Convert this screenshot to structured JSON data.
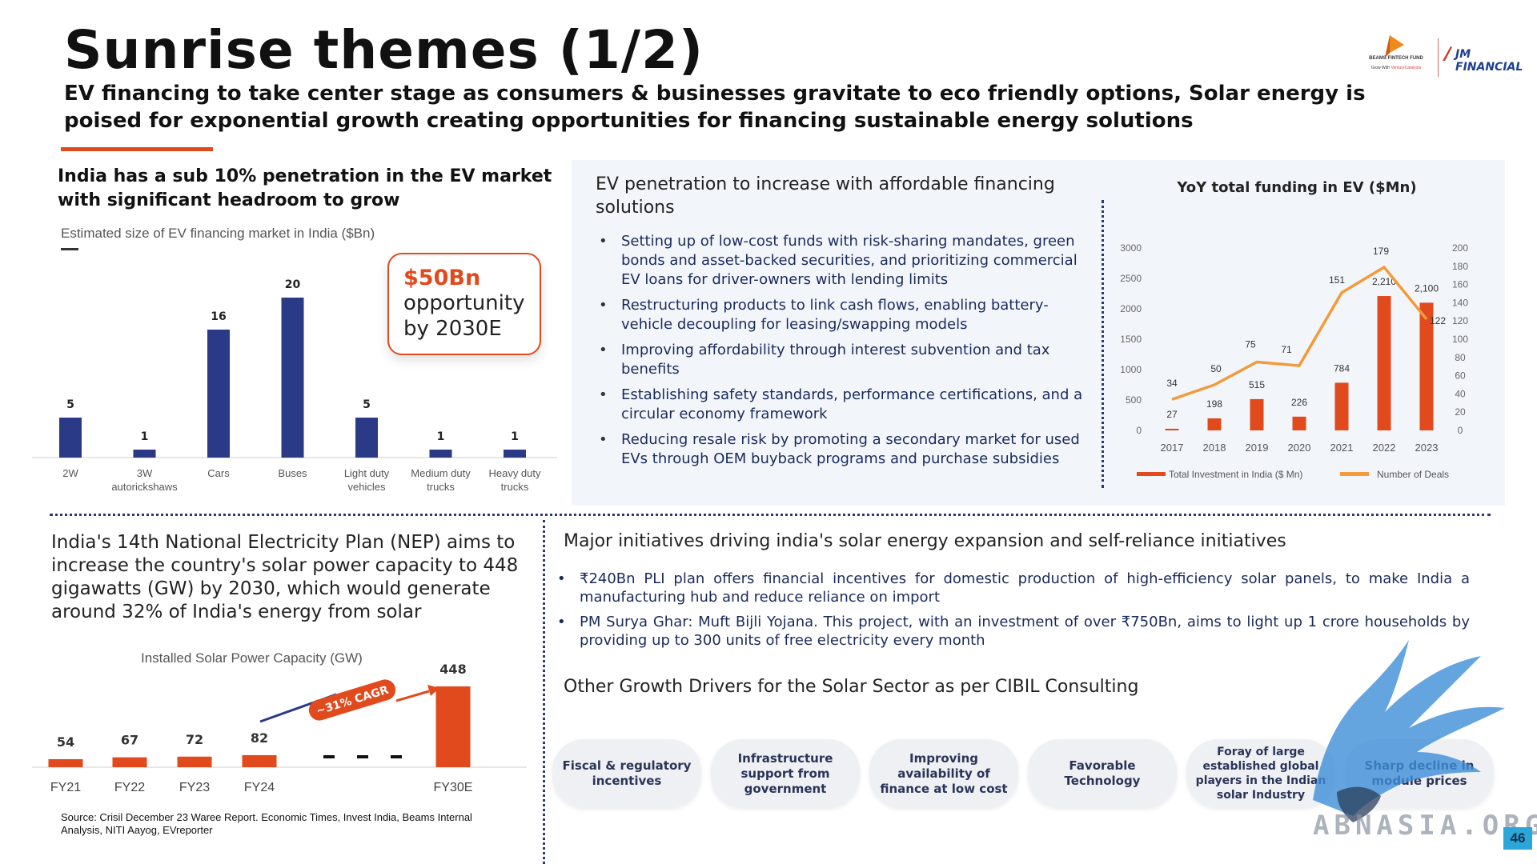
{
  "header": {
    "title": "Sunrise themes (1/2)",
    "subtitle": "EV financing to take center stage as consumers & businesses gravitate to eco friendly options, Solar energy is poised for exponential growth creating opportunities for financing sustainable energy solutions",
    "accent_color": "#e04a1c"
  },
  "logos": {
    "beams_line1": "BEAMS FINTECH FUND",
    "beams_line2": "Grow With",
    "beams_line3": "VentureCatalysts",
    "jm_text": "JM FINANCIAL"
  },
  "ev_market": {
    "heading": "India has a sub 10% penetration in the EV market with significant headroom to grow",
    "chart_label": "Estimated size of EV financing market in India ($Bn)",
    "callout_value": "$50Bn",
    "callout_text": "opportunity by 2030E"
  },
  "ev_financing": {
    "heading": "EV penetration to increase with affordable financing solutions",
    "bullets": [
      "Setting up of low-cost funds with risk-sharing mandates, green bonds and asset-backed securities, and prioritizing commercial EV loans for driver-owners with lending limits",
      "Restructuring products to link cash flows, enabling battery-vehicle decoupling for leasing/swapping models",
      "Improving affordability through interest subvention and tax benefits",
      "Establishing safety standards, performance certifications, and a circular economy framework",
      "Reducing resale risk by promoting a secondary market for used EVs through OEM buyback programs and purchase subsidies"
    ]
  },
  "solar": {
    "nep_text": "India's 14th National Electricity Plan (NEP) aims to increase the country's solar power capacity to 448 gigawatts (GW) by 2030, which would generate around 32% of India's energy from solar",
    "chart_label": "Installed Solar Power Capacity (GW)",
    "cagr_label": "~31% CAGR",
    "source": "Source: Crisil December 23 Waree Report. Economic Times, Invest India, Beams Internal Analysis, NITI Aayog, EVreporter"
  },
  "initiatives": {
    "heading": "Major initiatives driving india's solar energy expansion and self-reliance initiatives",
    "bullets": [
      "₹240Bn PLI plan offers financial incentives for domestic production of high-efficiency solar panels, to make India a manufacturing hub and reduce reliance on import",
      "PM Surya Ghar: Muft Bijli Yojana. This project, with an investment of over ₹750Bn, aims to light up 1 crore households by providing up to 300 units of free electricity every month"
    ],
    "drivers_heading": "Other Growth Drivers for the Solar Sector as per CIBIL Consulting",
    "drivers": [
      "Fiscal & regulatory incentives",
      "Infrastructure support from government",
      "Improving availability of finance at low cost",
      "Favorable Technology",
      "Foray of large established global players in the Indian solar Industry",
      "Sharp decline in module prices"
    ]
  },
  "watermark": {
    "text": "ABNASIA.ORG"
  },
  "page_number": "46",
  "chart_data": [
    {
      "type": "bar",
      "id": "ev-market",
      "title": "Estimated size of EV financing market in India ($Bn)",
      "categories": [
        "2W",
        "3W autorickshaws",
        "Cars",
        "Buses",
        "Light duty vehicles",
        "Medium duty trucks",
        "Heavy duty trucks"
      ],
      "category_lines": [
        [
          "2W"
        ],
        [
          "3W",
          "autorickshaws"
        ],
        [
          "Cars"
        ],
        [
          "Buses"
        ],
        [
          "Light duty",
          "vehicles"
        ],
        [
          "Medium duty",
          "trucks"
        ],
        [
          "Heavy duty",
          "trucks"
        ]
      ],
      "values": [
        5,
        1,
        16,
        20,
        5,
        1,
        1
      ],
      "ylim": [
        0,
        22
      ],
      "color": "#2b3a86",
      "grid": false
    },
    {
      "type": "bar+line",
      "id": "ev-funding",
      "title": "YoY total funding in EV ($Mn)",
      "x": [
        "2017",
        "2018",
        "2019",
        "2020",
        "2021",
        "2022",
        "2023"
      ],
      "series": [
        {
          "name": "Total Investment in India ($ Mn)",
          "type": "bar",
          "axis": "left",
          "values": [
            27,
            198,
            515,
            226,
            784,
            2210,
            2100
          ],
          "labels": [
            "27",
            "198",
            "515",
            "226",
            "784",
            "2,210",
            "2,100"
          ],
          "color": "#e04a1c"
        },
        {
          "name": "Number of Deals",
          "type": "line",
          "axis": "right",
          "values": [
            34,
            50,
            75,
            71,
            151,
            179,
            122
          ],
          "labels": [
            "34",
            "50",
            "75",
            "71",
            "151",
            "179",
            "122"
          ],
          "color": "#f39a3a"
        }
      ],
      "y_left": {
        "ylim": [
          0,
          3000
        ],
        "ticks": [
          "0",
          "500",
          "1000",
          "1500",
          "2000",
          "2500",
          "3000"
        ]
      },
      "y_right": {
        "ylim": [
          0,
          200
        ],
        "ticks": [
          "0",
          "20",
          "40",
          "60",
          "80",
          "100",
          "120",
          "140",
          "160",
          "180",
          "200"
        ]
      },
      "legend": "bottom",
      "grid": false
    },
    {
      "type": "bar",
      "id": "solar-capacity",
      "title": "Installed Solar Power Capacity (GW)",
      "categories": [
        "FY21",
        "FY22",
        "FY23",
        "FY24",
        "FY30E"
      ],
      "values": [
        54,
        67,
        72,
        82,
        448
      ],
      "labels": [
        "54",
        "67",
        "72",
        "82",
        "448"
      ],
      "color": "#e04a1c",
      "break_between": [
        "FY24",
        "FY30E"
      ],
      "grid": false
    }
  ]
}
